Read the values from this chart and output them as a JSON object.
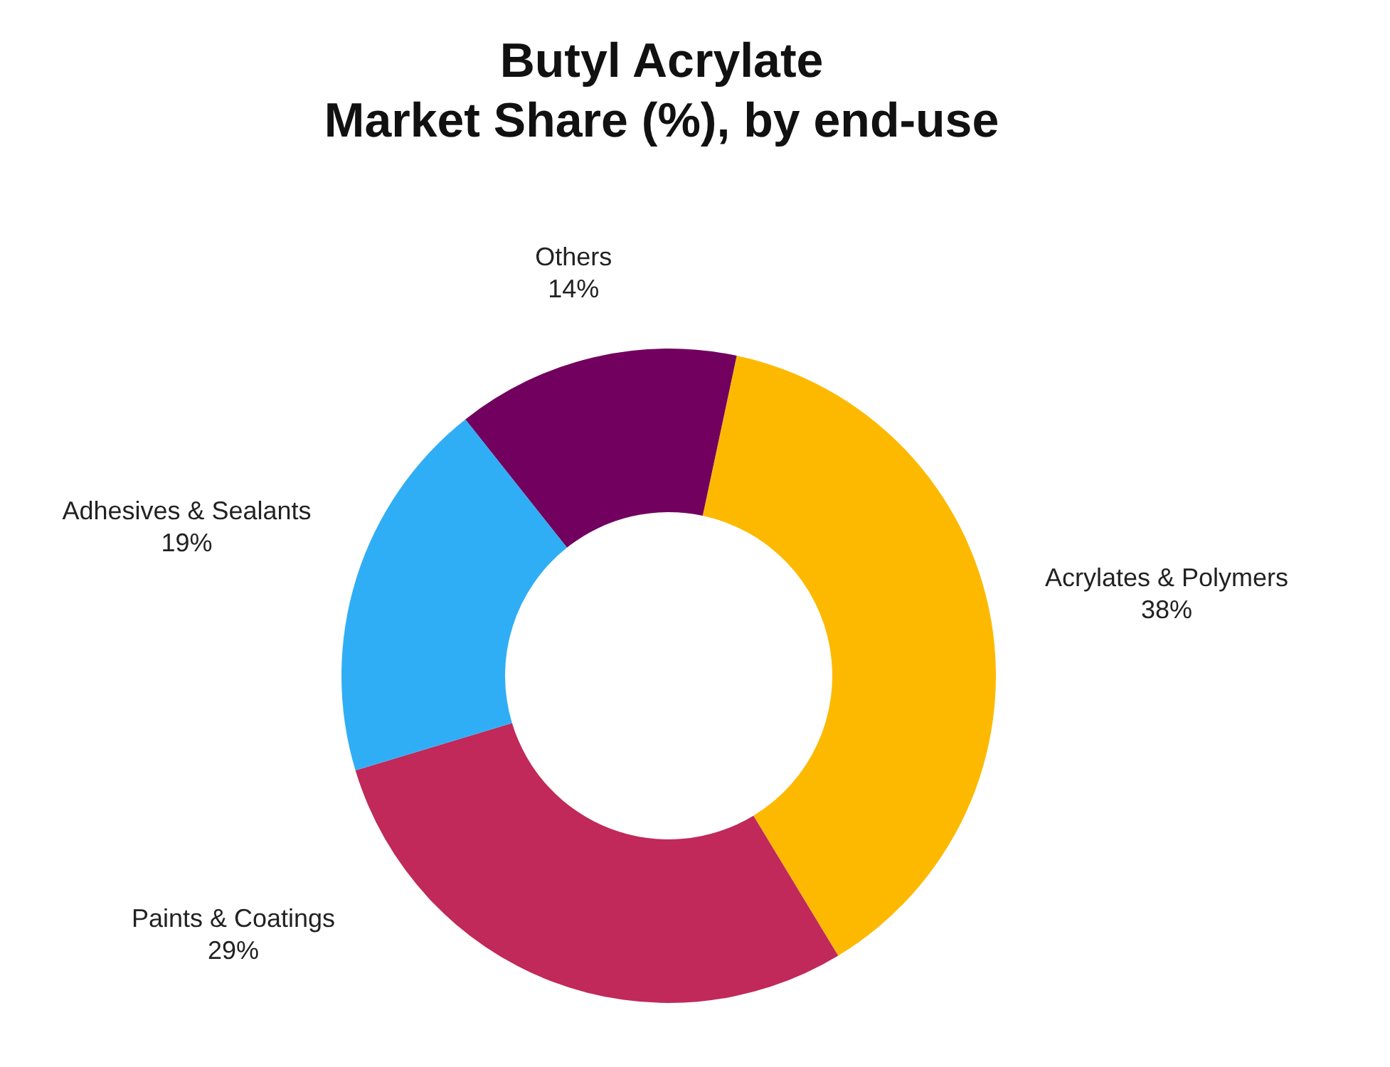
{
  "chart_data": {
    "type": "donut",
    "title": "Butyl Acrylate\nMarket Share (%), by end-use",
    "categories": [
      "Acrylates & Polymers",
      "Paints & Coatings",
      "Adhesives & Sealants",
      "Others"
    ],
    "values": [
      38,
      29,
      19,
      14
    ],
    "value_labels": [
      "38%",
      "29%",
      "19%",
      "14%"
    ],
    "colors": [
      "#fdb900",
      "#c0295a",
      "#30aef5",
      "#72005e"
    ]
  }
}
